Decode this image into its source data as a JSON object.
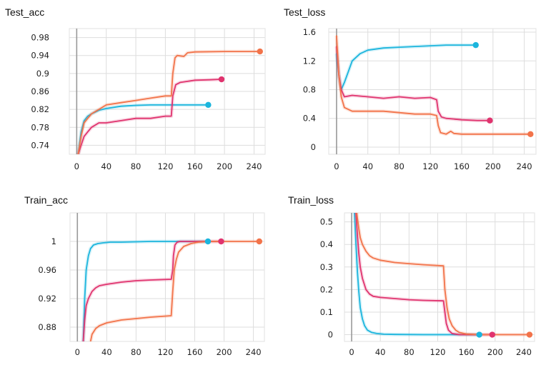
{
  "colors": {
    "cyan": "#1bb5dd",
    "pink": "#e0336e",
    "orange": "#f2734a",
    "grid": "#dddddd",
    "zero_axis": "#999999"
  },
  "chart_data": [
    {
      "id": "test_acc",
      "type": "line",
      "title": "Test_acc",
      "xlim": [
        -10,
        255
      ],
      "ylim": [
        0.72,
        1.0
      ],
      "xticks": [
        0,
        40,
        80,
        120,
        160,
        200,
        240
      ],
      "yticks": [
        0.74,
        0.78,
        0.82,
        0.86,
        0.9,
        0.94,
        0.98
      ],
      "ytick_labels": [
        "0.74",
        "0.78",
        "0.82",
        "0.86",
        "0.9",
        "0.94",
        "0.98"
      ],
      "grid": true,
      "series": [
        {
          "color": "cyan",
          "x": [
            2,
            6,
            10,
            15,
            20,
            30,
            40,
            60,
            80,
            100,
            120,
            140,
            160,
            178
          ],
          "y": [
            0.72,
            0.77,
            0.795,
            0.805,
            0.81,
            0.818,
            0.822,
            0.827,
            0.829,
            0.83,
            0.83,
            0.83,
            0.83,
            0.83
          ]
        },
        {
          "color": "pink",
          "x": [
            2,
            6,
            10,
            15,
            20,
            30,
            40,
            60,
            80,
            100,
            120,
            128,
            130,
            134,
            140,
            160,
            180,
            196
          ],
          "y": [
            0.72,
            0.74,
            0.76,
            0.77,
            0.78,
            0.79,
            0.79,
            0.795,
            0.8,
            0.8,
            0.805,
            0.805,
            0.85,
            0.875,
            0.88,
            0.885,
            0.886,
            0.887
          ]
        },
        {
          "color": "orange",
          "x": [
            2,
            6,
            10,
            15,
            20,
            30,
            40,
            60,
            80,
            100,
            120,
            128,
            130,
            133,
            136,
            145,
            150,
            160,
            200,
            248
          ],
          "y": [
            0.72,
            0.76,
            0.79,
            0.8,
            0.81,
            0.82,
            0.83,
            0.835,
            0.84,
            0.845,
            0.85,
            0.85,
            0.9,
            0.935,
            0.94,
            0.938,
            0.946,
            0.948,
            0.949,
            0.949
          ]
        }
      ]
    },
    {
      "id": "test_loss",
      "type": "line",
      "title": "Test_loss",
      "xlim": [
        -10,
        255
      ],
      "ylim": [
        -0.1,
        1.65
      ],
      "xticks": [
        0,
        40,
        80,
        120,
        160,
        200,
        240
      ],
      "yticks": [
        0,
        0.4,
        0.8,
        1.2,
        1.6
      ],
      "ytick_labels": [
        "0",
        "0.4",
        "0.8",
        "1.2",
        "1.6"
      ],
      "grid": true,
      "series": [
        {
          "color": "cyan",
          "x": [
            0,
            3,
            6,
            10,
            15,
            20,
            30,
            40,
            60,
            80,
            100,
            120,
            140,
            160,
            178
          ],
          "y": [
            1.3,
            1.0,
            0.8,
            0.9,
            1.05,
            1.2,
            1.3,
            1.35,
            1.38,
            1.39,
            1.4,
            1.41,
            1.42,
            1.42,
            1.42
          ]
        },
        {
          "color": "pink",
          "x": [
            0,
            3,
            6,
            10,
            20,
            40,
            60,
            80,
            100,
            120,
            128,
            130,
            134,
            140,
            160,
            180,
            196
          ],
          "y": [
            1.4,
            1.0,
            0.8,
            0.7,
            0.72,
            0.7,
            0.68,
            0.7,
            0.68,
            0.69,
            0.66,
            0.5,
            0.42,
            0.4,
            0.38,
            0.37,
            0.37
          ]
        },
        {
          "color": "orange",
          "x": [
            0,
            3,
            6,
            10,
            20,
            40,
            60,
            80,
            100,
            120,
            128,
            130,
            133,
            140,
            146,
            150,
            160,
            200,
            248
          ],
          "y": [
            1.55,
            1.0,
            0.7,
            0.55,
            0.5,
            0.5,
            0.5,
            0.48,
            0.46,
            0.46,
            0.44,
            0.3,
            0.2,
            0.18,
            0.22,
            0.19,
            0.18,
            0.18,
            0.18
          ]
        }
      ]
    },
    {
      "id": "train_acc",
      "type": "line",
      "title": "Train_acc",
      "xlim": [
        -10,
        255
      ],
      "ylim": [
        0.86,
        1.04
      ],
      "xticks": [
        0,
        40,
        80,
        120,
        160,
        200,
        240
      ],
      "yticks": [
        0.88,
        0.92,
        0.96,
        1.0
      ],
      "ytick_labels": [
        "0.88",
        "0.92",
        "0.96",
        "1"
      ],
      "grid": true,
      "series": [
        {
          "color": "cyan",
          "x": [
            8,
            10,
            12,
            15,
            18,
            22,
            28,
            35,
            45,
            60,
            100,
            150,
            178
          ],
          "y": [
            0.86,
            0.92,
            0.96,
            0.98,
            0.99,
            0.995,
            0.997,
            0.998,
            0.999,
            0.999,
            1.0,
            1.0,
            1.0
          ]
        },
        {
          "color": "pink",
          "x": [
            8,
            10,
            12,
            15,
            20,
            25,
            30,
            40,
            60,
            80,
            100,
            128,
            130,
            131,
            133,
            136,
            140,
            160,
            196
          ],
          "y": [
            0.86,
            0.89,
            0.91,
            0.92,
            0.93,
            0.935,
            0.938,
            0.94,
            0.943,
            0.945,
            0.946,
            0.947,
            0.96,
            0.98,
            0.995,
            0.999,
            1.0,
            1.0,
            1.0
          ]
        },
        {
          "color": "orange",
          "x": [
            18,
            20,
            25,
            30,
            40,
            60,
            80,
            100,
            128,
            130,
            132,
            135,
            138,
            145,
            155,
            165,
            180,
            248
          ],
          "y": [
            0.86,
            0.87,
            0.878,
            0.882,
            0.886,
            0.89,
            0.892,
            0.894,
            0.896,
            0.93,
            0.96,
            0.975,
            0.985,
            0.993,
            0.997,
            0.999,
            1.0,
            1.0
          ]
        }
      ]
    },
    {
      "id": "train_loss",
      "type": "line",
      "title": "Train_loss",
      "xlim": [
        -10,
        255
      ],
      "ylim": [
        -0.03,
        0.54
      ],
      "xticks": [
        0,
        40,
        80,
        120,
        160,
        200,
        240
      ],
      "yticks": [
        0,
        0.1,
        0.2,
        0.3,
        0.4,
        0.5
      ],
      "ytick_labels": [
        "0",
        "0.1",
        "0.2",
        "0.3",
        "0.4",
        "0.5"
      ],
      "grid": true,
      "series": [
        {
          "color": "cyan",
          "x": [
            4,
            6,
            8,
            10,
            12,
            15,
            18,
            22,
            28,
            35,
            45,
            60,
            100,
            178
          ],
          "y": [
            0.54,
            0.4,
            0.28,
            0.19,
            0.12,
            0.07,
            0.04,
            0.02,
            0.01,
            0.005,
            0.002,
            0.001,
            0.0,
            0.0
          ]
        },
        {
          "color": "pink",
          "x": [
            6,
            8,
            10,
            12,
            15,
            20,
            25,
            30,
            40,
            60,
            80,
            100,
            128,
            130,
            132,
            135,
            140,
            150,
            196
          ],
          "y": [
            0.54,
            0.44,
            0.36,
            0.3,
            0.25,
            0.2,
            0.18,
            0.17,
            0.165,
            0.16,
            0.155,
            0.152,
            0.15,
            0.1,
            0.05,
            0.02,
            0.005,
            0.0,
            0.0
          ]
        },
        {
          "color": "orange",
          "x": [
            7,
            10,
            12,
            15,
            20,
            25,
            30,
            40,
            60,
            80,
            100,
            128,
            130,
            133,
            136,
            140,
            145,
            150,
            160,
            180,
            248
          ],
          "y": [
            0.54,
            0.47,
            0.43,
            0.4,
            0.37,
            0.35,
            0.34,
            0.33,
            0.32,
            0.315,
            0.31,
            0.305,
            0.2,
            0.12,
            0.07,
            0.04,
            0.02,
            0.01,
            0.003,
            0.0,
            0.0
          ]
        }
      ]
    }
  ]
}
